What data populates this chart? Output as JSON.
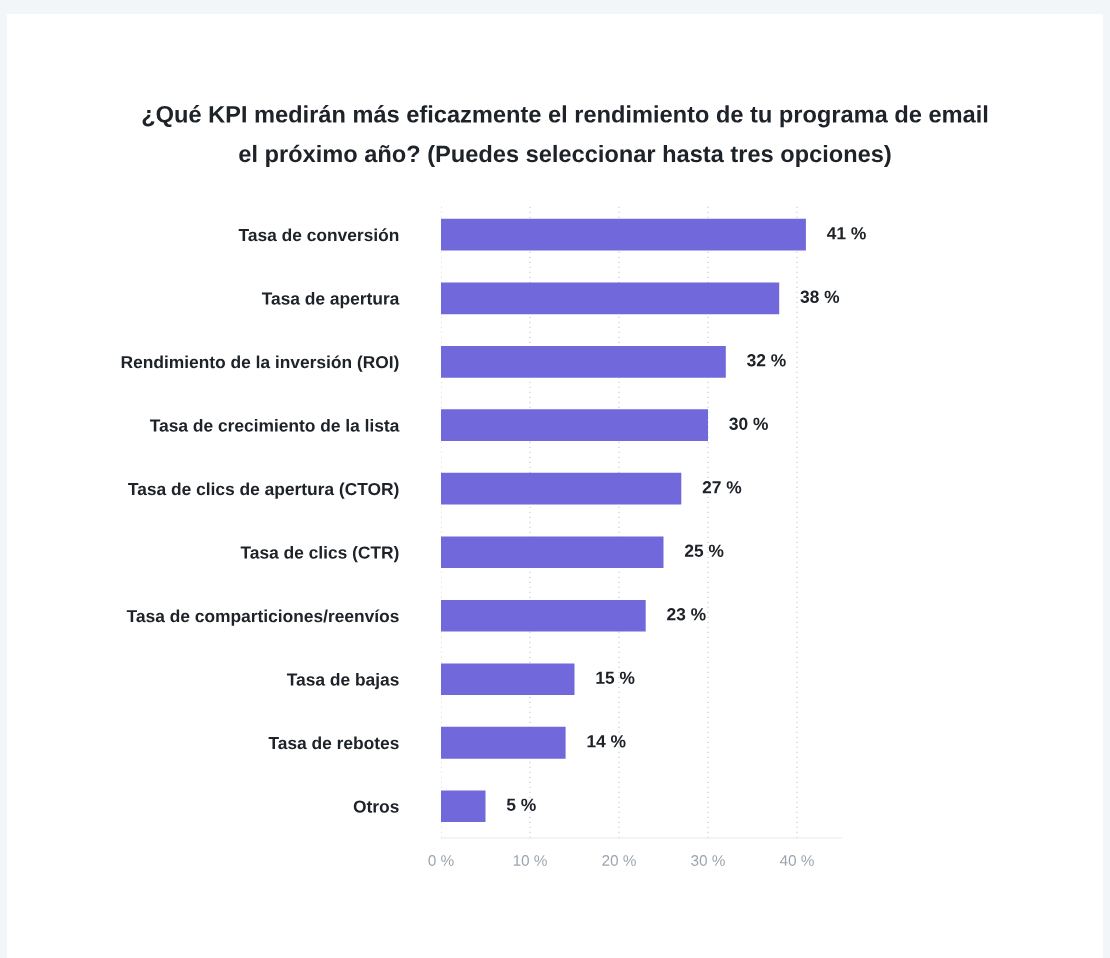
{
  "chart_data": {
    "type": "bar",
    "orientation": "horizontal",
    "title": "¿Qué KPI medirán más eficazmente el rendimiento de tu programa de email\nel próximo año? (Puedes seleccionar hasta tres opciones)",
    "categories": [
      "Tasa de conversión",
      "Tasa de apertura",
      "Rendimiento de la inversión (ROI)",
      "Tasa de crecimiento de la lista",
      "Tasa de clics de apertura (CTOR)",
      "Tasa de clics (CTR)",
      "Tasa de comparticiones/reenvíos",
      "Tasa de bajas",
      "Tasa de rebotes",
      "Otros"
    ],
    "values": [
      41,
      38,
      32,
      30,
      27,
      25,
      23,
      15,
      14,
      5
    ],
    "value_labels": [
      "41 %",
      "38 %",
      "32 %",
      "30 %",
      "27 %",
      "25 %",
      "23 %",
      "15 %",
      "14 %",
      "5 %"
    ],
    "color": "#7068db",
    "xlim": [
      0,
      45
    ],
    "xticks": [
      {
        "value": 0,
        "label": "0 %"
      },
      {
        "value": 10,
        "label": "10 %"
      },
      {
        "value": 20,
        "label": "20 %"
      },
      {
        "value": 30,
        "label": "30 %"
      },
      {
        "value": 40,
        "label": "40 %"
      }
    ],
    "grid": "x",
    "legend": false
  }
}
